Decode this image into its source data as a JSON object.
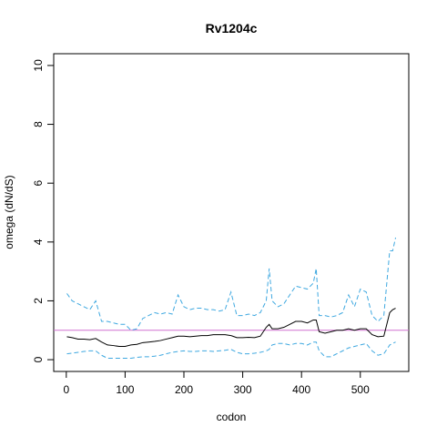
{
  "chart_data": {
    "type": "line",
    "title": "Rv1204c",
    "xlabel": "codon",
    "ylabel": "omega (dN/dS)",
    "x": [
      1,
      10,
      20,
      30,
      40,
      50,
      60,
      70,
      80,
      90,
      100,
      110,
      120,
      130,
      140,
      150,
      160,
      170,
      180,
      190,
      200,
      210,
      220,
      230,
      240,
      250,
      260,
      270,
      280,
      290,
      300,
      310,
      320,
      330,
      340,
      345,
      350,
      360,
      370,
      380,
      390,
      400,
      410,
      420,
      425,
      430,
      440,
      450,
      460,
      470,
      480,
      490,
      500,
      510,
      520,
      530,
      540,
      550,
      555,
      560
    ],
    "series": [
      {
        "color": "#000000",
        "dash": false,
        "values": [
          0.78,
          0.75,
          0.7,
          0.7,
          0.68,
          0.72,
          0.6,
          0.5,
          0.48,
          0.45,
          0.45,
          0.5,
          0.52,
          0.58,
          0.6,
          0.62,
          0.65,
          0.7,
          0.75,
          0.8,
          0.8,
          0.78,
          0.8,
          0.82,
          0.82,
          0.85,
          0.85,
          0.85,
          0.82,
          0.75,
          0.75,
          0.76,
          0.75,
          0.8,
          1.1,
          1.2,
          1.05,
          1.05,
          1.1,
          1.2,
          1.3,
          1.3,
          1.25,
          1.35,
          1.35,
          0.95,
          0.9,
          0.95,
          1.0,
          1.0,
          1.05,
          1.0,
          1.05,
          1.05,
          0.85,
          0.78,
          0.8,
          1.6,
          1.7,
          1.75
        ]
      },
      {
        "color": "#3ea8e0",
        "dash": true,
        "values": [
          2.25,
          2.0,
          1.9,
          1.8,
          1.7,
          2.0,
          1.3,
          1.3,
          1.25,
          1.2,
          1.2,
          1.0,
          1.05,
          1.4,
          1.5,
          1.6,
          1.55,
          1.6,
          1.55,
          2.2,
          1.8,
          1.7,
          1.75,
          1.75,
          1.7,
          1.7,
          1.65,
          1.7,
          2.3,
          1.5,
          1.5,
          1.55,
          1.5,
          1.6,
          2.0,
          3.1,
          2.0,
          1.8,
          1.9,
          2.2,
          2.5,
          2.45,
          2.4,
          2.6,
          3.1,
          1.5,
          1.5,
          1.45,
          1.5,
          1.6,
          2.2,
          1.8,
          2.4,
          2.3,
          1.5,
          1.3,
          1.5,
          3.7,
          3.7,
          4.15
        ]
      },
      {
        "color": "#3ea8e0",
        "dash": true,
        "values": [
          0.2,
          0.22,
          0.25,
          0.28,
          0.3,
          0.3,
          0.15,
          0.05,
          0.05,
          0.05,
          0.05,
          0.05,
          0.08,
          0.1,
          0.1,
          0.12,
          0.15,
          0.2,
          0.25,
          0.28,
          0.3,
          0.28,
          0.28,
          0.3,
          0.3,
          0.28,
          0.3,
          0.32,
          0.35,
          0.25,
          0.2,
          0.2,
          0.22,
          0.25,
          0.3,
          0.35,
          0.5,
          0.55,
          0.55,
          0.5,
          0.55,
          0.55,
          0.5,
          0.6,
          0.6,
          0.3,
          0.1,
          0.1,
          0.2,
          0.3,
          0.4,
          0.45,
          0.5,
          0.55,
          0.3,
          0.15,
          0.2,
          0.5,
          0.55,
          0.6
        ]
      }
    ],
    "reference_line": {
      "value": 1,
      "color": "#d070d0"
    },
    "xlim": [
      -21.4,
      582.4
    ],
    "xticks": [
      0,
      100,
      200,
      300,
      400,
      500
    ],
    "ylim": [
      -0.4,
      10.4
    ],
    "yticks": [
      0,
      2,
      4,
      6,
      8,
      10
    ]
  }
}
